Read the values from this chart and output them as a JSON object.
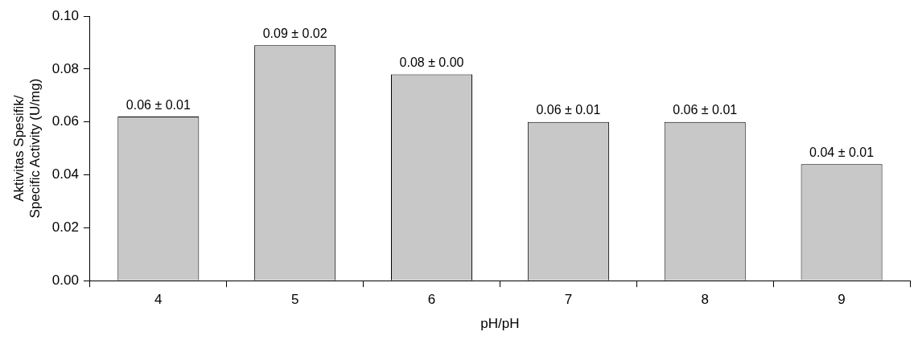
{
  "chart_data": {
    "type": "bar",
    "xlabel": "pH/pH",
    "ylabel": "Aktivitas Spesifik/\nSpecific Activity (U/mg)",
    "categories": [
      "4",
      "5",
      "6",
      "7",
      "8",
      "9"
    ],
    "values": [
      0.062,
      0.089,
      0.078,
      0.06,
      0.06,
      0.044
    ],
    "value_labels": [
      "0.06 ± 0.01",
      "0.09 ± 0.02",
      "0.08 ± 0.00",
      "0.06 ± 0.01",
      "0.06 ± 0.01",
      "0.04 ± 0.01"
    ],
    "color": "#c8c8c8",
    "ylim": [
      0,
      0.1
    ],
    "yticks": [
      {
        "value": 0,
        "label": "0.00"
      },
      {
        "value": 0.02,
        "label": "0.02"
      },
      {
        "value": 0.04,
        "label": "0.04"
      },
      {
        "value": 0.06,
        "label": "0.06"
      },
      {
        "value": 0.08,
        "label": "0.08"
      },
      {
        "value": 0.1,
        "label": "0.10"
      }
    ],
    "grid": false,
    "legend": false
  }
}
